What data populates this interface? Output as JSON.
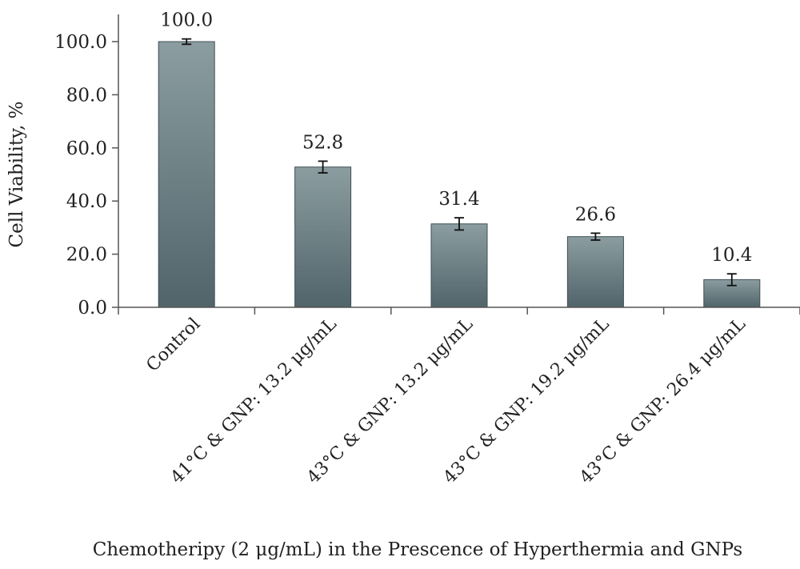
{
  "chart_data": {
    "type": "bar",
    "title": "",
    "xlabel": "Chemotheripy (2 μg/mL) in the Prescence of Hyperthermia and GNPs",
    "ylabel": "Cell Viability, %",
    "ylim": [
      0,
      100
    ],
    "yticks": [
      "0.0",
      "20.0",
      "40.0",
      "60.0",
      "80.0",
      "100.0"
    ],
    "categories": [
      "Control",
      "41°C & GNP: 13.2 μg/mL",
      "43°C & GNP: 13.2 μg/mL",
      "43°C & GNP: 19.2 μg/mL",
      "43°C & GNP: 26.4 μg/mL"
    ],
    "values": [
      100.0,
      52.8,
      31.4,
      26.6,
      10.4
    ],
    "value_labels": [
      "100.0",
      "52.8",
      "31.4",
      "26.6",
      "10.4"
    ],
    "errors": [
      1.0,
      2.2,
      2.3,
      1.3,
      2.2
    ],
    "grid": false,
    "legend": "none",
    "colors": {
      "bar_top": "#8b9da0",
      "bar_bottom": "#51646a",
      "bar_edge": "#3f4f54",
      "axis": "#555555"
    }
  }
}
